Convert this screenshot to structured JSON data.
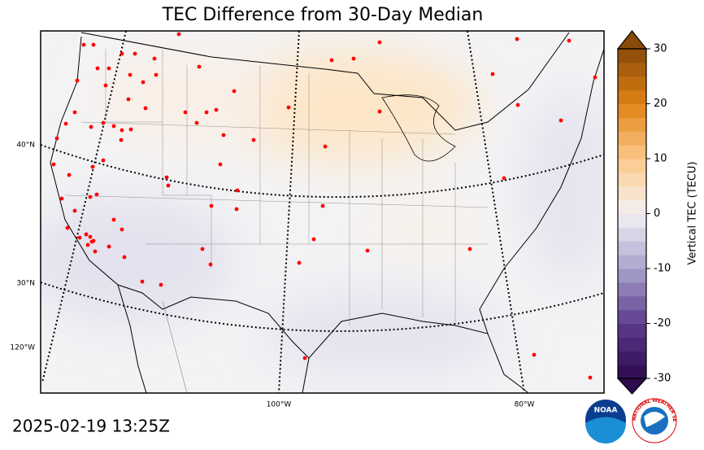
{
  "title": "TEC Difference from 30-Day Median",
  "timestamp": "2025-02-19 13:25Z",
  "map": {
    "lat_labels": [
      "40°N",
      "30°N"
    ],
    "lon_labels": [
      "120°W",
      "100°W",
      "80°W"
    ]
  },
  "colorbar": {
    "label": "Vertical TEC (TECU)",
    "lim": [
      -30,
      30
    ],
    "ticks": [
      -30,
      -20,
      -10,
      0,
      10,
      20,
      30
    ]
  },
  "logos": {
    "noaa": "NOAA",
    "nws": "NATIONAL WEATHER SERVICE"
  }
}
